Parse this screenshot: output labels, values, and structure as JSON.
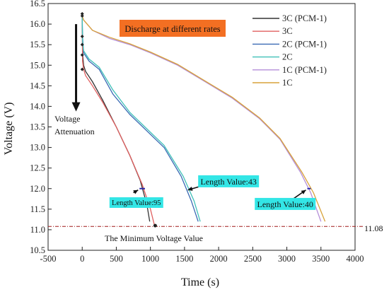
{
  "chart_data": {
    "type": "line",
    "title": "Discharge at different rates",
    "xlabel": "Time (s)",
    "ylabel": "Voltage (V)",
    "xlim": [
      -500,
      4000
    ],
    "ylim": [
      10.5,
      16.5
    ],
    "xticks": [
      "-500",
      "0",
      "500",
      "1000",
      "1500",
      "2000",
      "2500",
      "3000",
      "3500",
      "4000"
    ],
    "yticks": [
      "10.5",
      "11.0",
      "11.5",
      "12.0",
      "12.5",
      "13.0",
      "13.5",
      "14.0",
      "14.5",
      "15.0",
      "15.5",
      "16.0",
      "16.5"
    ],
    "legend_position": "top-right",
    "grid": false,
    "series": [
      {
        "name": "3C (PCM-1)",
        "color": "#333333",
        "x": [
          0,
          5,
          20,
          50,
          150,
          300,
          500,
          700,
          850,
          950,
          990
        ],
        "y": [
          16.2,
          15.3,
          15.0,
          14.85,
          14.6,
          14.15,
          13.5,
          12.8,
          12.2,
          11.6,
          11.2
        ]
      },
      {
        "name": "3C",
        "color": "#e06060",
        "x": [
          0,
          5,
          20,
          50,
          150,
          300,
          500,
          700,
          880,
          1000,
          1060
        ],
        "y": [
          16.15,
          15.1,
          14.9,
          14.75,
          14.5,
          14.1,
          13.5,
          12.8,
          12.1,
          11.5,
          11.1
        ]
      },
      {
        "name": "2C (PCM-1)",
        "color": "#3a6ab4",
        "x": [
          0,
          5,
          20,
          100,
          250,
          450,
          700,
          950,
          1200,
          1450,
          1600,
          1700
        ],
        "y": [
          16.2,
          15.7,
          15.3,
          15.1,
          14.9,
          14.3,
          13.8,
          13.4,
          13.0,
          12.3,
          11.7,
          11.2
        ]
      },
      {
        "name": "2C",
        "color": "#40c0b8",
        "x": [
          0,
          5,
          20,
          100,
          250,
          450,
          700,
          950,
          1200,
          1480,
          1640,
          1730
        ],
        "y": [
          16.2,
          15.6,
          15.35,
          15.15,
          14.95,
          14.4,
          13.85,
          13.45,
          13.05,
          12.3,
          11.7,
          11.2
        ]
      },
      {
        "name": "1C (PCM-1)",
        "color": "#b48ed8",
        "x": [
          0,
          20,
          150,
          400,
          700,
          1000,
          1400,
          1800,
          2200,
          2600,
          2900,
          3200,
          3350,
          3500
        ],
        "y": [
          16.2,
          16.1,
          15.85,
          15.65,
          15.5,
          15.3,
          15.0,
          14.6,
          14.2,
          13.7,
          13.2,
          12.4,
          11.9,
          11.2
        ]
      },
      {
        "name": "1C",
        "color": "#d8a23a",
        "x": [
          0,
          20,
          150,
          400,
          700,
          1000,
          1400,
          1800,
          2200,
          2600,
          2900,
          3220,
          3390,
          3560
        ],
        "y": [
          16.2,
          16.1,
          15.85,
          15.68,
          15.52,
          15.32,
          15.02,
          14.62,
          14.22,
          13.72,
          13.22,
          12.4,
          11.9,
          11.2
        ]
      }
    ],
    "start_points": [
      16.25,
      16.2,
      15.7,
      15.5,
      15.25,
      14.9
    ],
    "end_points": [
      {
        "x": 1070,
        "y": 11.1
      }
    ],
    "min_voltage_line": {
      "value": 11.08,
      "label": "The Minimum Voltage Value",
      "value_label": "11.08"
    },
    "length_marks": [
      {
        "x": [
          840,
          920
        ],
        "y": 12.0,
        "label": "Length Value:95",
        "arrow_from": [
          750,
          11.9
        ],
        "label_pos": [
          400,
          11.6
        ]
      },
      {
        "x": [
          1570,
          1620
        ],
        "y": 12.0,
        "label": "Length Value:43",
        "arrow_from": [
          1720,
          12.05
        ],
        "label_pos": [
          1700,
          12.1
        ]
      },
      {
        "x": [
          3300,
          3350
        ],
        "y": 12.0,
        "label": "Length Value:40",
        "arrow_from": [
          3050,
          11.7
        ],
        "label_pos": [
          2530,
          11.55
        ]
      }
    ],
    "annotations": {
      "voltage_attenuation": [
        "Voltage",
        "Attenuation"
      ]
    }
  }
}
